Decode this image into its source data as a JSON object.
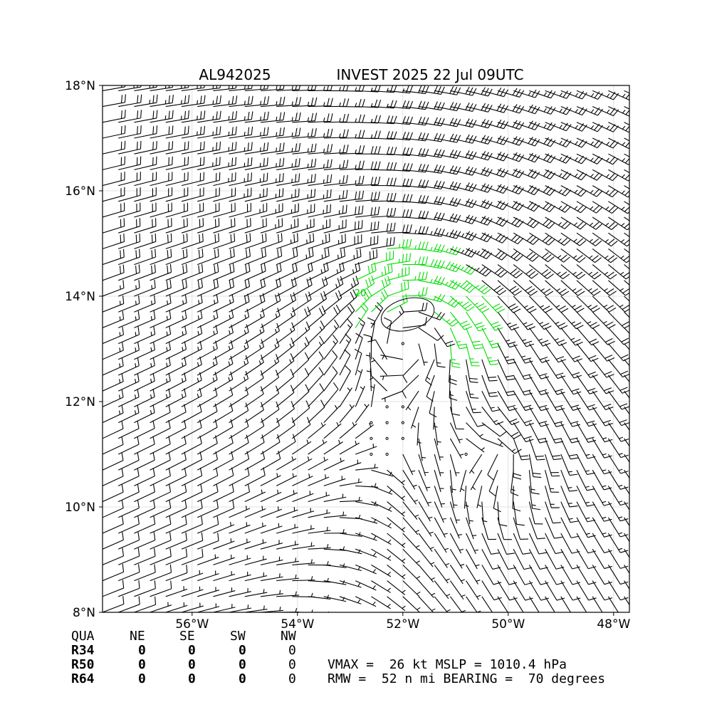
{
  "title_left": "AL942025",
  "title_right": "INVEST 2025 22 Jul 09UTC",
  "chart_data": {
    "type": "wind_barbs",
    "x_ticks": [
      "56°W",
      "54°W",
      "52°W",
      "50°W",
      "48°W"
    ],
    "x_tick_values": [
      -56,
      -54,
      -52,
      -50,
      -48
    ],
    "y_ticks": [
      "8°N",
      "10°N",
      "12°N",
      "14°N",
      "16°N",
      "18°N"
    ],
    "y_tick_values": [
      8,
      10,
      12,
      14,
      16,
      18
    ],
    "xlim": [
      -57.7,
      -47.7
    ],
    "ylim": [
      8,
      18
    ],
    "grid": true,
    "center": [
      -51.8,
      13.6
    ],
    "contour_label": "20",
    "barb_colors": {
      "default": "#000000",
      "highlight": "#00dd00"
    }
  },
  "table": {
    "header": [
      "QUA",
      "NE",
      "SE",
      "SW",
      "NW"
    ],
    "rows": [
      {
        "label": "R34",
        "values": [
          "0",
          "0",
          "0",
          "0"
        ]
      },
      {
        "label": "R50",
        "values": [
          "0",
          "0",
          "0",
          "0"
        ]
      },
      {
        "label": "R64",
        "values": [
          "0",
          "0",
          "0",
          "0"
        ]
      }
    ]
  },
  "stats": {
    "line1": "VMAX =  26 kt MSLP = 1010.4 hPa",
    "line2": "RMW =  52 n mi BEARING =  70 degrees"
  }
}
